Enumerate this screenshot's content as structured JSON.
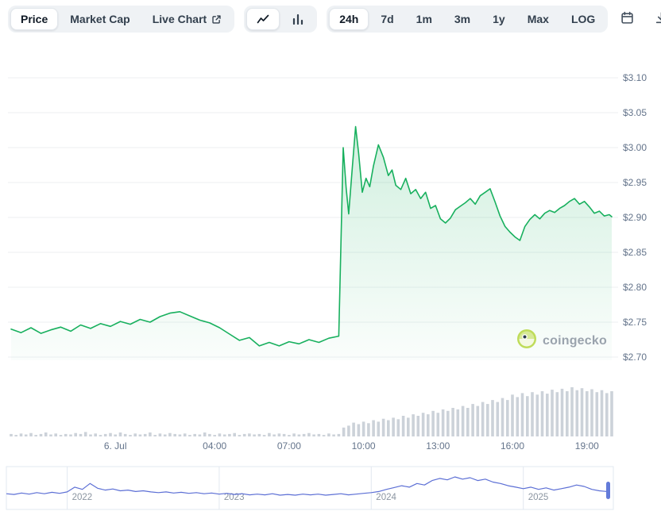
{
  "toolbar": {
    "view_tabs": [
      {
        "label": "Price",
        "selected": true
      },
      {
        "label": "Market Cap",
        "selected": false
      },
      {
        "label": "Live Chart",
        "selected": false,
        "external_link": true
      }
    ],
    "chart_types": [
      {
        "icon": "line-chart-icon",
        "selected": true
      },
      {
        "icon": "bar-chart-icon",
        "selected": false
      }
    ],
    "ranges": [
      {
        "label": "24h",
        "selected": true
      },
      {
        "label": "7d",
        "selected": false
      },
      {
        "label": "1m",
        "selected": false
      },
      {
        "label": "3m",
        "selected": false
      },
      {
        "label": "1y",
        "selected": false
      },
      {
        "label": "Max",
        "selected": false
      },
      {
        "label": "LOG",
        "selected": false
      }
    ],
    "actions": [
      "calendar-icon",
      "download-icon",
      "expand-icon"
    ]
  },
  "watermark": {
    "text": "coingecko"
  },
  "colors": {
    "line": "#18b05e",
    "area_top": "rgba(24,176,94,0.20)",
    "area_bottom": "rgba(24,176,94,0.02)",
    "grid": "#eceff2",
    "axis_text": "#64748b",
    "volume_bar": "#ccd2d9",
    "navigator_line": "#5c6fd5",
    "navigator_border": "#e2e8f0",
    "navigator_handle": "#637bd9",
    "year_label": "#8b95a1",
    "toolbar_bg": "#eff2f5"
  },
  "chart_data": {
    "type": "line",
    "y_axis": {
      "min": 2.7,
      "max": 3.1,
      "tick_step": 0.05,
      "ticks": [
        {
          "label": "$3.10",
          "value": 3.1
        },
        {
          "label": "$3.05",
          "value": 3.05
        },
        {
          "label": "$3.00",
          "value": 3.0
        },
        {
          "label": "$2.95",
          "value": 2.95
        },
        {
          "label": "$2.90",
          "value": 2.9
        },
        {
          "label": "$2.85",
          "value": 2.85
        },
        {
          "label": "$2.80",
          "value": 2.8
        },
        {
          "label": "$2.75",
          "value": 2.75
        },
        {
          "label": "$2.70",
          "value": 2.7
        }
      ]
    },
    "x_axis": {
      "t_max": 24.2,
      "ticks": [
        {
          "label": "6. Jul",
          "t": 4.2
        },
        {
          "label": "04:00",
          "t": 8.2
        },
        {
          "label": "07:00",
          "t": 11.2
        },
        {
          "label": "10:00",
          "t": 14.2
        },
        {
          "label": "13:00",
          "t": 17.2
        },
        {
          "label": "16:00",
          "t": 20.2
        },
        {
          "label": "19:00",
          "t": 23.2
        }
      ]
    },
    "price_series": {
      "name": "price_usd",
      "points": [
        [
          0,
          2.74
        ],
        [
          0.4,
          2.735
        ],
        [
          0.8,
          2.742
        ],
        [
          1.2,
          2.734
        ],
        [
          1.6,
          2.739
        ],
        [
          2.0,
          2.743
        ],
        [
          2.4,
          2.737
        ],
        [
          2.8,
          2.746
        ],
        [
          3.2,
          2.741
        ],
        [
          3.6,
          2.748
        ],
        [
          4.0,
          2.744
        ],
        [
          4.4,
          2.751
        ],
        [
          4.8,
          2.747
        ],
        [
          5.2,
          2.754
        ],
        [
          5.6,
          2.75
        ],
        [
          6.0,
          2.758
        ],
        [
          6.4,
          2.763
        ],
        [
          6.8,
          2.765
        ],
        [
          7.2,
          2.759
        ],
        [
          7.6,
          2.753
        ],
        [
          8.0,
          2.749
        ],
        [
          8.4,
          2.742
        ],
        [
          8.8,
          2.733
        ],
        [
          9.2,
          2.724
        ],
        [
          9.6,
          2.728
        ],
        [
          10.0,
          2.716
        ],
        [
          10.4,
          2.721
        ],
        [
          10.8,
          2.716
        ],
        [
          11.2,
          2.722
        ],
        [
          11.6,
          2.719
        ],
        [
          12.0,
          2.725
        ],
        [
          12.4,
          2.721
        ],
        [
          12.8,
          2.727
        ],
        [
          13.2,
          2.73
        ],
        [
          13.3,
          2.88
        ],
        [
          13.38,
          3.0
        ],
        [
          13.5,
          2.942
        ],
        [
          13.6,
          2.905
        ],
        [
          13.75,
          2.972
        ],
        [
          13.88,
          3.03
        ],
        [
          14.0,
          2.992
        ],
        [
          14.15,
          2.936
        ],
        [
          14.3,
          2.956
        ],
        [
          14.45,
          2.944
        ],
        [
          14.6,
          2.974
        ],
        [
          14.8,
          3.004
        ],
        [
          15.0,
          2.986
        ],
        [
          15.2,
          2.96
        ],
        [
          15.35,
          2.968
        ],
        [
          15.5,
          2.946
        ],
        [
          15.7,
          2.94
        ],
        [
          15.9,
          2.956
        ],
        [
          16.1,
          2.934
        ],
        [
          16.3,
          2.94
        ],
        [
          16.5,
          2.927
        ],
        [
          16.7,
          2.936
        ],
        [
          16.9,
          2.913
        ],
        [
          17.1,
          2.917
        ],
        [
          17.3,
          2.898
        ],
        [
          17.5,
          2.892
        ],
        [
          17.7,
          2.899
        ],
        [
          17.9,
          2.911
        ],
        [
          18.1,
          2.916
        ],
        [
          18.3,
          2.921
        ],
        [
          18.5,
          2.927
        ],
        [
          18.7,
          2.919
        ],
        [
          18.9,
          2.931
        ],
        [
          19.1,
          2.936
        ],
        [
          19.3,
          2.941
        ],
        [
          19.5,
          2.922
        ],
        [
          19.7,
          2.902
        ],
        [
          19.9,
          2.887
        ],
        [
          20.1,
          2.879
        ],
        [
          20.3,
          2.872
        ],
        [
          20.5,
          2.867
        ],
        [
          20.7,
          2.887
        ],
        [
          20.9,
          2.897
        ],
        [
          21.1,
          2.904
        ],
        [
          21.3,
          2.898
        ],
        [
          21.5,
          2.906
        ],
        [
          21.7,
          2.91
        ],
        [
          21.9,
          2.907
        ],
        [
          22.1,
          2.913
        ],
        [
          22.3,
          2.917
        ],
        [
          22.5,
          2.923
        ],
        [
          22.7,
          2.927
        ],
        [
          22.9,
          2.919
        ],
        [
          23.1,
          2.923
        ],
        [
          23.3,
          2.915
        ],
        [
          23.5,
          2.906
        ],
        [
          23.7,
          2.909
        ],
        [
          23.9,
          2.902
        ],
        [
          24.1,
          2.904
        ],
        [
          24.2,
          2.901
        ]
      ]
    },
    "volume_series": {
      "t_start": 0,
      "t_step": 0.2,
      "values": [
        0.05,
        0.03,
        0.06,
        0.04,
        0.07,
        0.03,
        0.05,
        0.08,
        0.04,
        0.06,
        0.03,
        0.05,
        0.04,
        0.07,
        0.05,
        0.09,
        0.04,
        0.06,
        0.03,
        0.05,
        0.07,
        0.04,
        0.08,
        0.05,
        0.03,
        0.06,
        0.04,
        0.05,
        0.08,
        0.03,
        0.06,
        0.04,
        0.07,
        0.05,
        0.04,
        0.06,
        0.03,
        0.05,
        0.04,
        0.08,
        0.05,
        0.03,
        0.06,
        0.04,
        0.05,
        0.07,
        0.03,
        0.05,
        0.06,
        0.04,
        0.05,
        0.03,
        0.07,
        0.04,
        0.06,
        0.05,
        0.03,
        0.06,
        0.04,
        0.05,
        0.07,
        0.04,
        0.05,
        0.03,
        0.06,
        0.04,
        0.05,
        0.18,
        0.22,
        0.28,
        0.25,
        0.3,
        0.27,
        0.33,
        0.3,
        0.36,
        0.33,
        0.38,
        0.35,
        0.42,
        0.38,
        0.45,
        0.42,
        0.48,
        0.45,
        0.52,
        0.48,
        0.55,
        0.52,
        0.58,
        0.55,
        0.62,
        0.58,
        0.66,
        0.62,
        0.7,
        0.66,
        0.74,
        0.7,
        0.78,
        0.74,
        0.85,
        0.8,
        0.88,
        0.82,
        0.9,
        0.85,
        0.92,
        0.87,
        0.95,
        0.9,
        0.97,
        0.92,
        1.0,
        0.94,
        0.98,
        0.92,
        0.96,
        0.9,
        0.94,
        0.88,
        0.92
      ]
    },
    "navigator": {
      "year_start": 2021.6,
      "year_step": 0.05,
      "year_ticks": [
        {
          "label": "2022",
          "year": 2022
        },
        {
          "label": "2023",
          "year": 2023
        },
        {
          "label": "2024",
          "year": 2024
        },
        {
          "label": "2025",
          "year": 2025
        }
      ],
      "values": [
        0.3,
        0.28,
        0.32,
        0.29,
        0.33,
        0.3,
        0.34,
        0.31,
        0.35,
        0.48,
        0.42,
        0.58,
        0.45,
        0.4,
        0.43,
        0.38,
        0.4,
        0.36,
        0.38,
        0.35,
        0.33,
        0.35,
        0.32,
        0.34,
        0.31,
        0.33,
        0.3,
        0.32,
        0.29,
        0.31,
        0.28,
        0.3,
        0.27,
        0.29,
        0.27,
        0.3,
        0.26,
        0.28,
        0.26,
        0.29,
        0.27,
        0.29,
        0.26,
        0.28,
        0.3,
        0.27,
        0.29,
        0.31,
        0.33,
        0.36,
        0.42,
        0.47,
        0.52,
        0.48,
        0.58,
        0.54,
        0.66,
        0.72,
        0.68,
        0.76,
        0.7,
        0.74,
        0.66,
        0.7,
        0.62,
        0.58,
        0.52,
        0.48,
        0.44,
        0.48,
        0.42,
        0.46,
        0.4,
        0.44,
        0.48,
        0.54,
        0.5,
        0.42,
        0.38,
        0.36
      ]
    }
  }
}
